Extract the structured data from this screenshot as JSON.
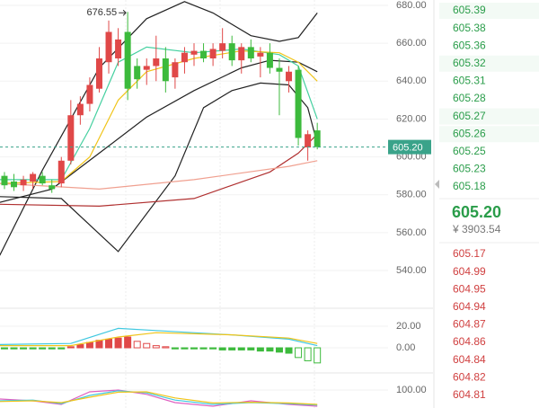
{
  "chart_data": [
    {
      "type": "candlestick",
      "x": [
        0,
        1,
        2,
        3,
        4,
        5,
        6,
        7,
        8,
        9,
        10,
        11,
        12,
        13,
        14,
        15,
        16,
        17,
        18,
        19,
        20,
        21,
        22,
        23,
        24,
        25,
        26,
        27,
        28,
        29,
        30,
        31,
        32,
        33
      ],
      "open": [
        590,
        587,
        585,
        587,
        590,
        585,
        586,
        598,
        622,
        628,
        636,
        650,
        652,
        666,
        648,
        646,
        648,
        652,
        642,
        650,
        654,
        656,
        652,
        656,
        660,
        651,
        658,
        653,
        655,
        647,
        640,
        646,
        605,
        614
      ],
      "high": [
        592,
        591,
        590,
        592,
        592,
        588,
        600,
        630,
        632,
        642,
        658,
        672,
        668,
        676.55,
        652,
        652,
        664,
        658,
        652,
        658,
        660,
        660,
        660,
        668,
        664,
        660,
        662,
        658,
        660,
        652,
        648,
        648,
        614,
        618
      ],
      "low": [
        583,
        582,
        582,
        583,
        585,
        581,
        584,
        596,
        617,
        624,
        634,
        644,
        648,
        630,
        636,
        638,
        640,
        634,
        636,
        644,
        648,
        650,
        648,
        652,
        648,
        644,
        650,
        642,
        644,
        622,
        634,
        606,
        598,
        604
      ],
      "close": [
        585,
        584,
        588,
        591,
        586,
        583,
        598,
        622,
        628,
        638,
        652,
        666,
        662,
        636,
        641,
        648,
        652,
        640,
        650,
        655,
        656,
        652,
        657,
        660,
        651,
        658,
        652,
        655,
        647,
        645,
        645,
        610,
        612,
        605.2
      ],
      "up_color": "#e04848",
      "down_color": "#3cba3c",
      "xlim": [
        -0.47,
        40.47
      ],
      "ylim": [
        521.5,
        682.85
      ],
      "yticks": [
        {
          "value": 680,
          "label": "680.00"
        },
        {
          "value": 660,
          "label": "660.00"
        },
        {
          "value": 640,
          "label": "640.00"
        },
        {
          "value": 620,
          "label": "620.00"
        },
        {
          "value": 600,
          "label": "600.00"
        },
        {
          "value": 580,
          "label": "580.00"
        },
        {
          "value": 560,
          "label": "560.00"
        },
        {
          "value": 540,
          "label": "540.00"
        }
      ],
      "overlays": [
        {
          "color": "#222222",
          "x": [
            -0.5,
            4,
            10,
            15,
            19,
            22,
            26,
            29,
            31,
            33
          ],
          "values": [
            548,
            593,
            647,
            673,
            682,
            676,
            664,
            661,
            663,
            676
          ]
        },
        {
          "color": "#222222",
          "x": [
            -0.5,
            5,
            10,
            15,
            20,
            25,
            28,
            31,
            33
          ],
          "values": [
            576,
            583,
            602,
            621,
            635,
            647,
            651,
            650,
            645
          ]
        },
        {
          "color": "#222222",
          "x": [
            -0.5,
            6,
            12,
            18,
            21,
            24,
            27,
            30,
            32,
            33
          ],
          "values": [
            579,
            578,
            550,
            590,
            626,
            635,
            639,
            638,
            626,
            607
          ]
        },
        {
          "color": "#45d0a0",
          "x": [
            -0.5,
            6,
            9,
            12,
            15,
            20,
            25,
            29,
            31,
            33
          ],
          "values": [
            588,
            588,
            615,
            650,
            658,
            655,
            657,
            654,
            648,
            620
          ]
        },
        {
          "color": "#f0c419",
          "x": [
            -0.5,
            6,
            9,
            12,
            15,
            20,
            25,
            29,
            31,
            33
          ],
          "values": [
            586,
            587,
            600,
            630,
            645,
            652,
            656,
            655,
            650,
            640
          ]
        },
        {
          "color": "#b03030",
          "x": [
            -0.5,
            10,
            20,
            28,
            31,
            33
          ],
          "values": [
            575,
            574,
            578,
            592,
            602,
            612
          ]
        },
        {
          "color": "#f0a090",
          "x": [
            -0.5,
            10,
            20,
            30,
            33
          ],
          "values": [
            586,
            583,
            588,
            595,
            598
          ]
        }
      ],
      "last_price": {
        "value": 605.2,
        "label": "605.20"
      },
      "max_index": 13
    },
    {
      "type": "macd",
      "xlim": [
        -0.47,
        40.47
      ],
      "ylim": [
        -20.8,
        35
      ],
      "yticks": [
        {
          "value": 20,
          "label": "20.00"
        },
        {
          "value": 0,
          "label": "0.00"
        }
      ],
      "histogram": [
        -1,
        -1,
        -1,
        -1,
        -1,
        -1,
        -1,
        1,
        3,
        5,
        7,
        8,
        9,
        10,
        6,
        4,
        2,
        1,
        -1,
        -1,
        -1,
        -1,
        -1,
        -2,
        -2,
        -2,
        -2,
        -3,
        -3,
        -4,
        -5,
        -9,
        -12,
        -14
      ],
      "lines": [
        {
          "color": "#40c8e0",
          "x": [
            -0.5,
            7,
            12,
            16,
            24,
            30,
            33
          ],
          "values": [
            3,
            4,
            18,
            16,
            12,
            8,
            2
          ]
        },
        {
          "color": "#f0c419",
          "x": [
            -0.5,
            7,
            12,
            16,
            24,
            30,
            33
          ],
          "values": [
            2,
            2,
            10,
            14,
            12,
            9,
            4
          ]
        }
      ]
    },
    {
      "type": "kdj",
      "xlim": [
        -0.47,
        40.47
      ],
      "ylim": [
        50,
        140
      ],
      "yticks": [
        {
          "value": 100,
          "label": "100.00"
        }
      ],
      "lines": [
        {
          "color": "#e060c0",
          "x": [
            -0.5,
            3,
            6,
            9,
            12,
            15,
            18,
            22,
            26,
            30,
            33
          ],
          "values": [
            75,
            70,
            60,
            95,
            100,
            88,
            65,
            55,
            70,
            60,
            55
          ]
        },
        {
          "color": "#40c8e0",
          "x": [
            -0.5,
            3,
            6,
            9,
            12,
            15,
            18,
            22,
            26,
            30,
            33
          ],
          "values": [
            70,
            72,
            62,
            85,
            98,
            92,
            72,
            60,
            65,
            62,
            58
          ]
        },
        {
          "color": "#f0c419",
          "x": [
            -0.5,
            3,
            6,
            9,
            12,
            15,
            18,
            22,
            26,
            30,
            33
          ],
          "values": [
            68,
            70,
            65,
            80,
            94,
            95,
            78,
            64,
            66,
            64,
            60
          ]
        }
      ]
    }
  ],
  "order_book": {
    "asks": [
      "605.39",
      "605.38",
      "605.36",
      "605.32",
      "605.31",
      "605.28",
      "605.27",
      "605.26",
      "605.25",
      "605.23",
      "605.18"
    ],
    "last": "605.20",
    "cny": "¥ 3903.54",
    "bids": [
      "605.17",
      "604.99",
      "604.95",
      "604.94",
      "604.87",
      "604.86",
      "604.84",
      "604.82",
      "604.81"
    ]
  }
}
